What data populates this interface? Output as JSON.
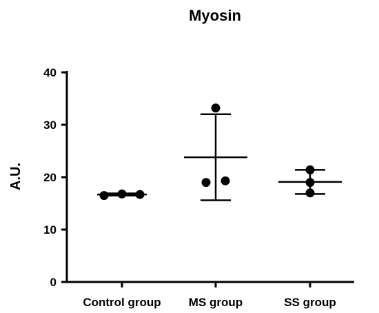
{
  "chart_data": {
    "type": "scatter",
    "title": "Myosin",
    "ylabel": "A.U.",
    "xlabel": "",
    "ylim": [
      0,
      40
    ],
    "yticks": [
      0,
      10,
      20,
      30,
      40
    ],
    "categories": [
      "Control group",
      "MS group",
      "SS group"
    ],
    "groups": [
      {
        "name": "Control group",
        "points": [
          16.5,
          16.8,
          16.7
        ],
        "mean": 16.7,
        "sd_low": 16.5,
        "sd_high": 16.9
      },
      {
        "name": "MS group",
        "points": [
          33.2,
          19.0,
          19.3
        ],
        "mean": 23.8,
        "sd_low": 15.6,
        "sd_high": 32.0
      },
      {
        "name": "SS group",
        "points": [
          21.4,
          19.0,
          17.0
        ],
        "mean": 19.1,
        "sd_low": 16.8,
        "sd_high": 21.4
      }
    ],
    "grid": false,
    "colors": {
      "marker": "#000000",
      "axis": "#000000"
    }
  }
}
